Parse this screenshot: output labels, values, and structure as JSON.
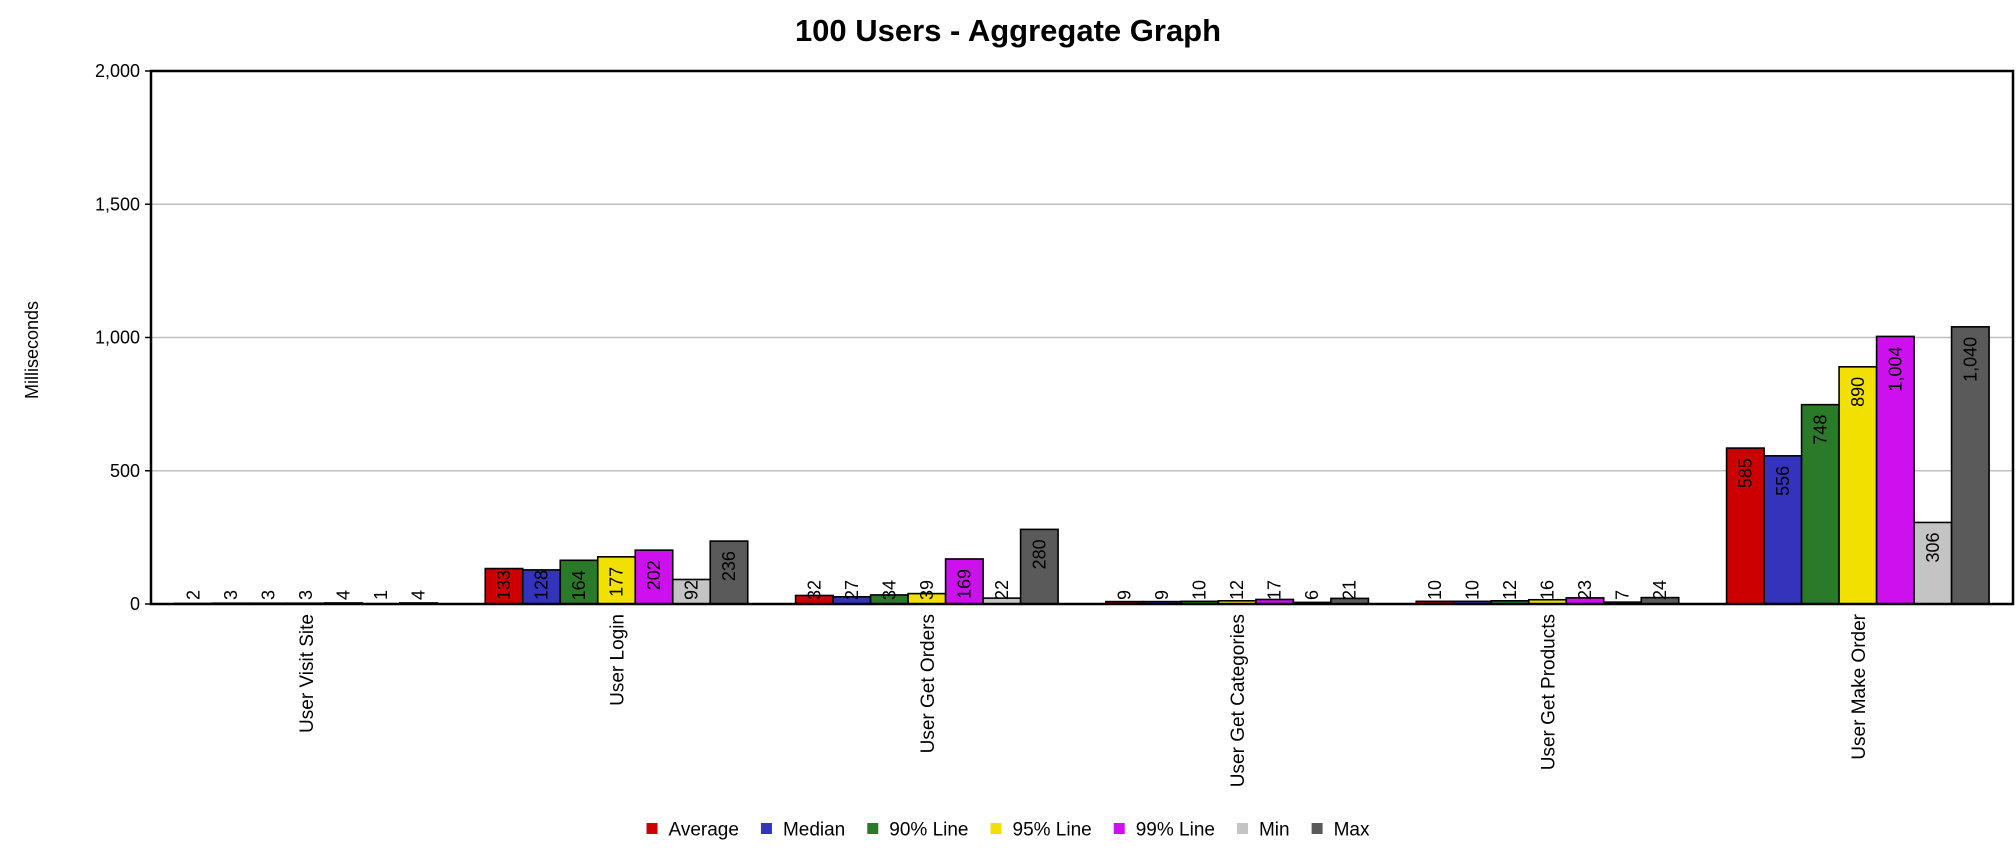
{
  "chart_data": {
    "type": "bar",
    "title": "100 Users - Aggregate Graph",
    "xlabel": "",
    "ylabel": "Milliseconds",
    "ylim": [
      0,
      2000
    ],
    "yticks": [
      "0",
      "500",
      "1,000",
      "1,500",
      "2,000"
    ],
    "ytick_values": [
      0,
      500,
      1000,
      1500,
      2000
    ],
    "grid": true,
    "legend_position": "bottom",
    "categories": [
      "User Visit Site",
      "User Login",
      "User Get Orders",
      "User Get Categories",
      "User Get Products",
      "User Make Order"
    ],
    "series": [
      {
        "name": "Average",
        "color": "#cc0000",
        "values": [
          2,
          133,
          32,
          9,
          10,
          585
        ],
        "labels": [
          "2",
          "133",
          "32",
          "9",
          "10",
          "585"
        ]
      },
      {
        "name": "Median",
        "color": "#3333bb",
        "values": [
          3,
          128,
          27,
          9,
          10,
          556
        ],
        "labels": [
          "3",
          "128",
          "27",
          "9",
          "10",
          "556"
        ]
      },
      {
        "name": "90% Line",
        "color": "#2a7a2a",
        "values": [
          3,
          164,
          34,
          10,
          12,
          748
        ],
        "labels": [
          "3",
          "164",
          "34",
          "10",
          "12",
          "748"
        ]
      },
      {
        "name": "95% Line",
        "color": "#f2e000",
        "values": [
          3,
          177,
          39,
          12,
          16,
          890
        ],
        "labels": [
          "3",
          "177",
          "39",
          "12",
          "16",
          "890"
        ]
      },
      {
        "name": "99% Line",
        "color": "#cc11ee",
        "values": [
          4,
          202,
          169,
          17,
          23,
          1004
        ],
        "labels": [
          "4",
          "202",
          "169",
          "17",
          "23",
          "1,004"
        ]
      },
      {
        "name": "Min",
        "color": "#c4c4c4",
        "values": [
          1,
          92,
          22,
          6,
          7,
          306
        ],
        "labels": [
          "1",
          "92",
          "22",
          "6",
          "7",
          "306"
        ]
      },
      {
        "name": "Max",
        "color": "#5a5a5a",
        "values": [
          4,
          236,
          280,
          21,
          24,
          1040
        ],
        "labels": [
          "4",
          "236",
          "280",
          "21",
          "24",
          "1,040"
        ]
      }
    ]
  }
}
